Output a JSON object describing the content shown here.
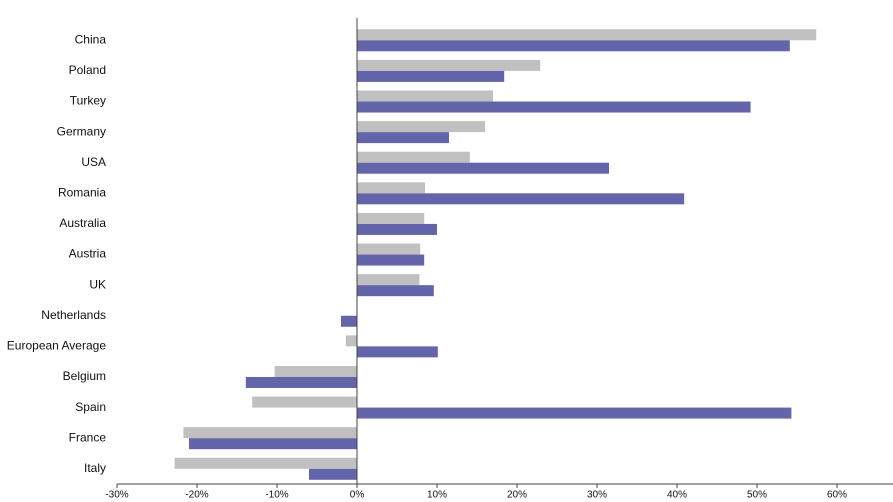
{
  "chart_data": {
    "type": "hbar",
    "categories": [
      "China",
      "Poland",
      "Turkey",
      "Germany",
      "USA",
      "Romania",
      "Australia",
      "Austria",
      "UK",
      "Netherlands",
      "European Average",
      "Belgium",
      "Spain",
      "France",
      "Italy"
    ],
    "series": [
      {
        "color": "#c0c0c0",
        "values": [
          57.4,
          22.9,
          17.0,
          16.0,
          14.1,
          8.5,
          8.4,
          7.9,
          7.8,
          0,
          -1.4,
          -10.3,
          -13.1,
          -21.7,
          -22.8
        ]
      },
      {
        "color": "#6464aa",
        "values": [
          54.1,
          18.4,
          49.2,
          11.5,
          31.5,
          40.9,
          10.0,
          8.4,
          9.6,
          -2.0,
          10.1,
          -13.9,
          54.3,
          -21.0,
          -6.0
        ]
      }
    ],
    "xlim": [
      -30,
      67
    ],
    "xticks": [
      {
        "value": -30,
        "label": "-30%"
      },
      {
        "value": -20,
        "label": "-20%"
      },
      {
        "value": -10,
        "label": "-10%"
      },
      {
        "value": 0,
        "label": "0%"
      },
      {
        "value": 10,
        "label": "10%"
      },
      {
        "value": 20,
        "label": "20%"
      },
      {
        "value": 30,
        "label": "30%"
      },
      {
        "value": 40,
        "label": "40%"
      },
      {
        "value": 50,
        "label": "50%"
      },
      {
        "value": 60,
        "label": "60%"
      }
    ],
    "grid": false
  }
}
